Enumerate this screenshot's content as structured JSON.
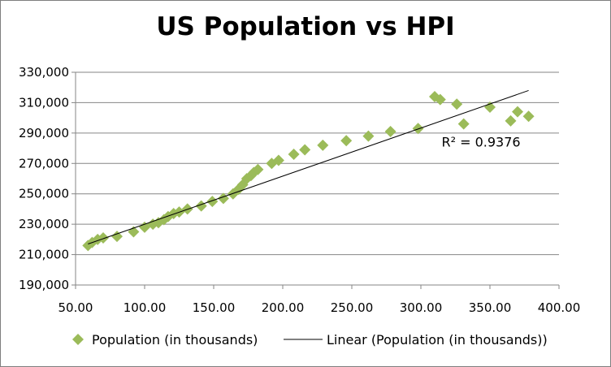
{
  "chart_data": {
    "type": "scatter",
    "title": "US Population vs HPI",
    "xlabel": "",
    "ylabel": "",
    "xlim": [
      50,
      400
    ],
    "ylim": [
      190000,
      330000
    ],
    "x_ticks": [
      50,
      100,
      150,
      200,
      250,
      300,
      350,
      400
    ],
    "x_tick_labels": [
      "50.00",
      "100.00",
      "150.00",
      "200.00",
      "250.00",
      "300.00",
      "350.00",
      "400.00"
    ],
    "y_ticks": [
      190000,
      210000,
      230000,
      250000,
      270000,
      290000,
      310000,
      330000
    ],
    "y_tick_labels": [
      "190,000",
      "210,000",
      "230,000",
      "250,000",
      "270,000",
      "290,000",
      "310,000",
      "330,000"
    ],
    "grid": "horizontal",
    "legend_position": "bottom",
    "series": [
      {
        "name": "Population (in thousands)",
        "marker": "diamond",
        "color": "#9bbb59",
        "points": [
          [
            59,
            216000
          ],
          [
            62,
            218000
          ],
          [
            66,
            220000
          ],
          [
            70,
            221000
          ],
          [
            80,
            222000
          ],
          [
            92,
            225000
          ],
          [
            100,
            228000
          ],
          [
            106,
            230000
          ],
          [
            110,
            231000
          ],
          [
            114,
            233000
          ],
          [
            117,
            235000
          ],
          [
            121,
            237000
          ],
          [
            125,
            238000
          ],
          [
            131,
            240000
          ],
          [
            141,
            242000
          ],
          [
            149,
            245000
          ],
          [
            157,
            247000
          ],
          [
            164,
            250000
          ],
          [
            168,
            253000
          ],
          [
            171,
            256000
          ],
          [
            174,
            260000
          ],
          [
            177,
            262000
          ],
          [
            179,
            264000
          ],
          [
            182,
            266000
          ],
          [
            192,
            270000
          ],
          [
            197,
            272000
          ],
          [
            208,
            276000
          ],
          [
            216,
            279000
          ],
          [
            229,
            282000
          ],
          [
            246,
            285000
          ],
          [
            262,
            288000
          ],
          [
            278,
            291000
          ],
          [
            298,
            293000
          ],
          [
            310,
            314000
          ],
          [
            314,
            312000
          ],
          [
            326,
            309000
          ],
          [
            331,
            296000
          ],
          [
            350,
            307000
          ],
          [
            365,
            298000
          ],
          [
            370,
            304000
          ],
          [
            378,
            301000
          ]
        ]
      },
      {
        "name": "Linear (Population (in thousands))",
        "type": "trendline",
        "color": "#000000",
        "x_range": [
          59,
          378
        ],
        "y_range": [
          217000,
          318000
        ]
      }
    ],
    "annotations": [
      {
        "text": "R² = 0.9376",
        "x": 315,
        "y": 281000
      }
    ]
  }
}
